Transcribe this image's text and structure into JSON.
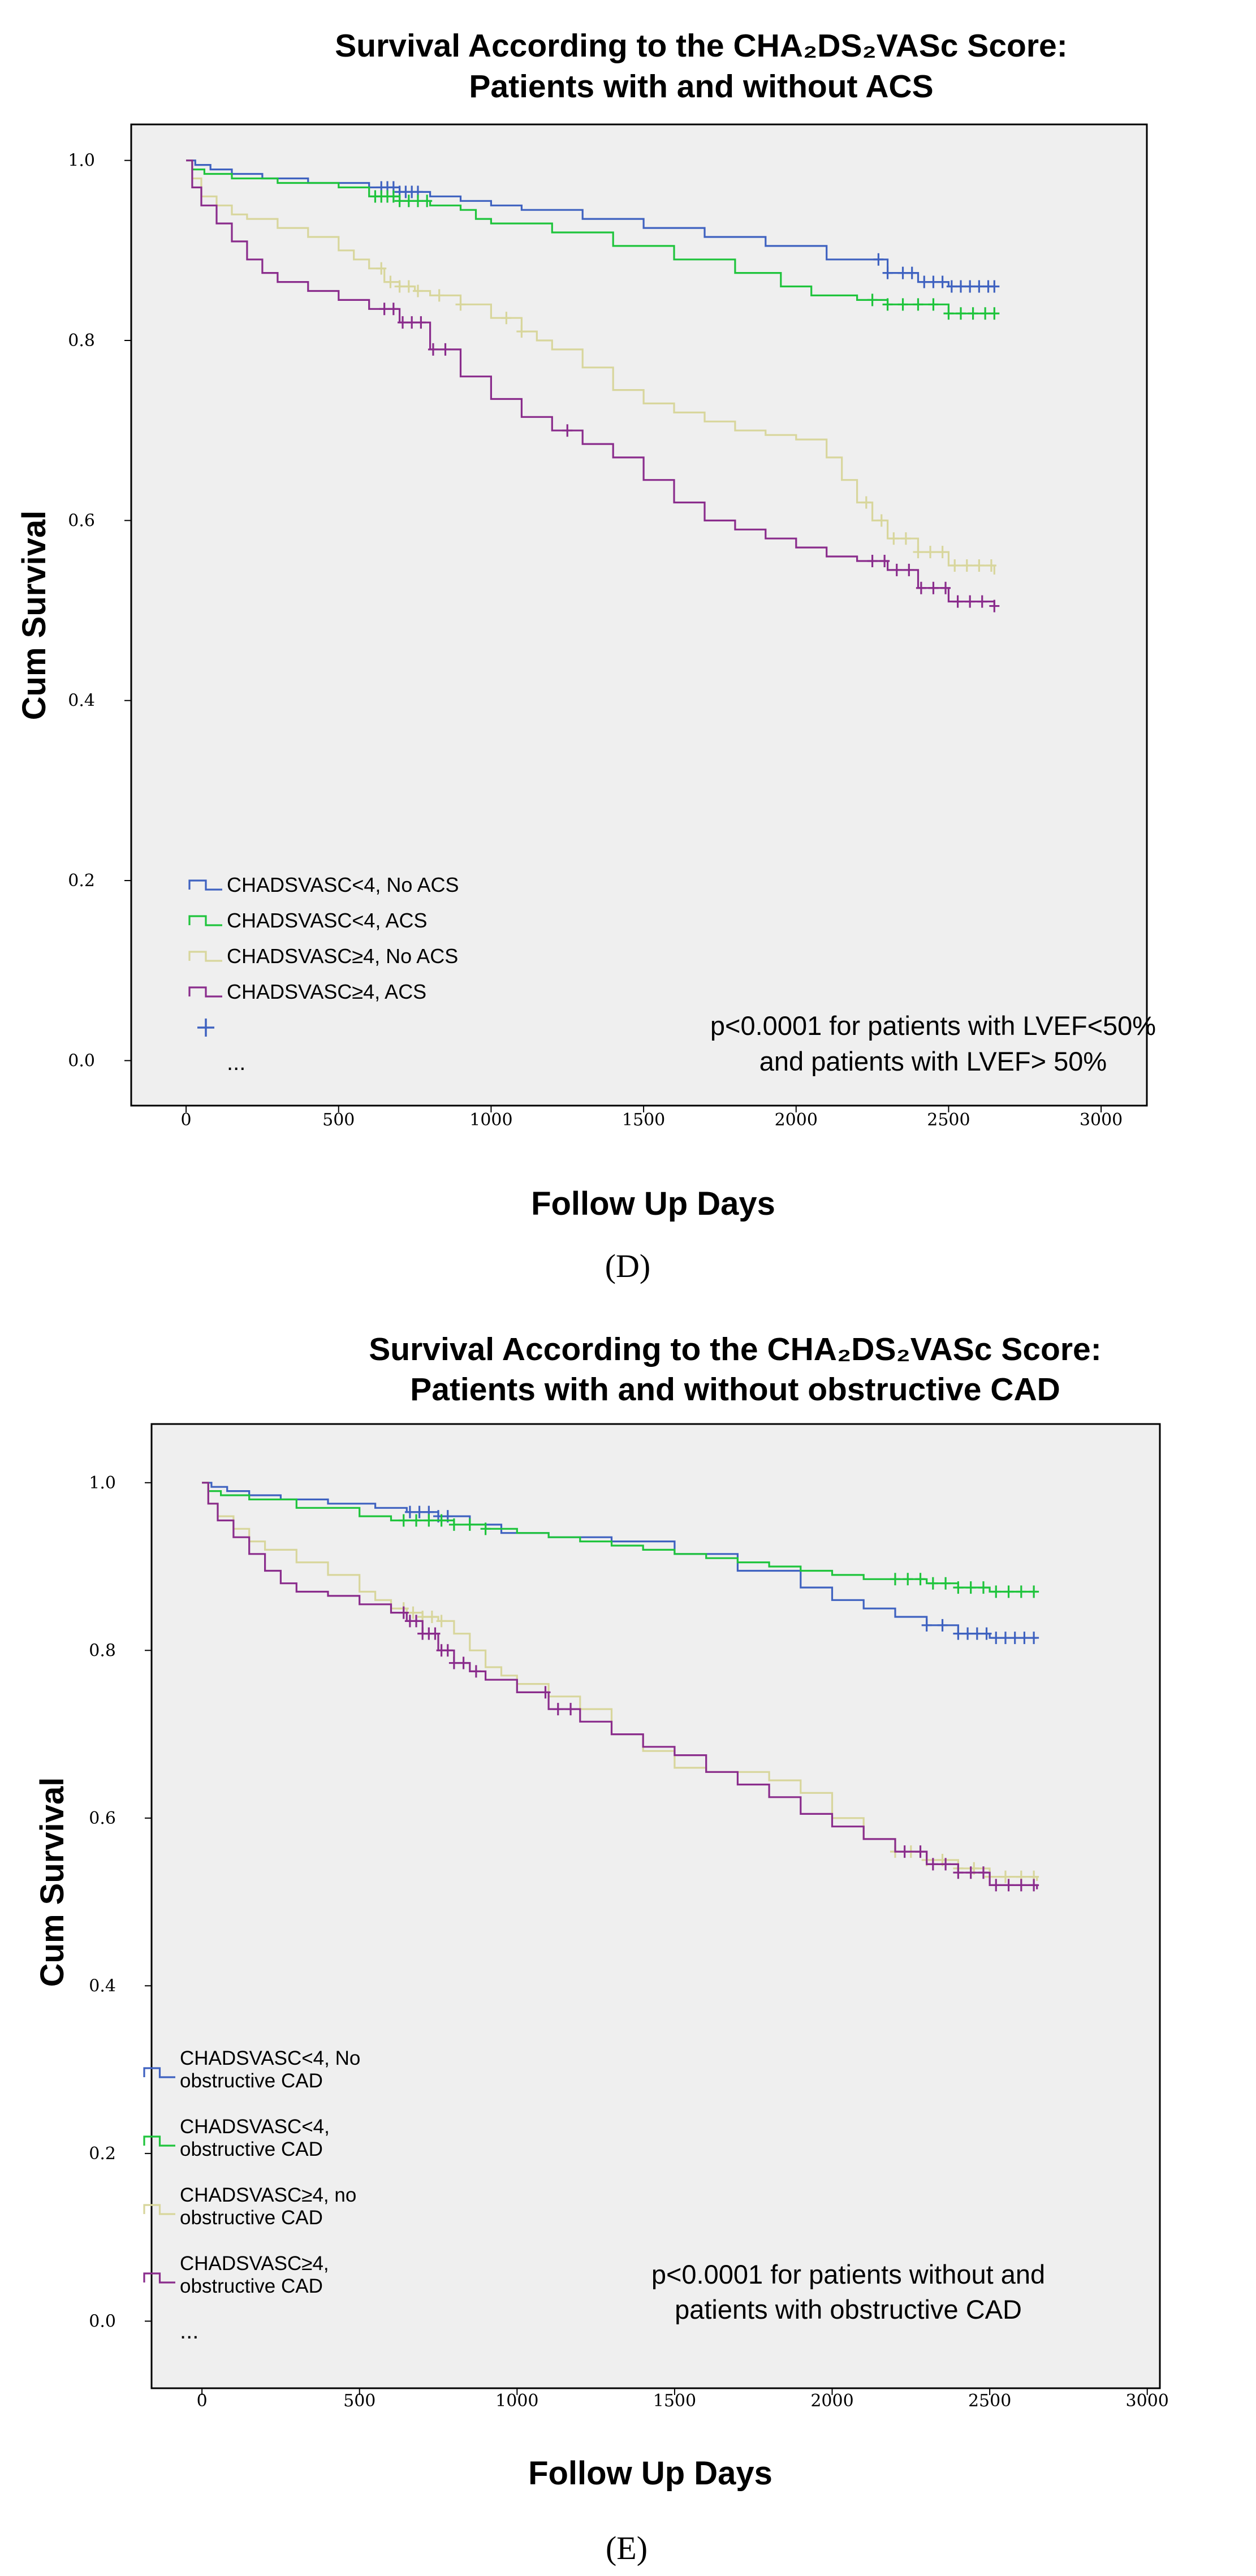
{
  "chart_data": [
    {
      "type": "line",
      "panel_label": "(D)",
      "title": [
        "Survival According to the CHA₂DS₂VASc Score:",
        "Patients with and without ACS"
      ],
      "xlabel": "Follow Up Days",
      "ylabel": "Cum Survival",
      "xlim": [
        -180,
        3150
      ],
      "ylim": [
        -0.05,
        1.04
      ],
      "x_ticks": [
        "0",
        "500",
        "1000",
        "1500",
        "2000",
        "2500",
        "3000"
      ],
      "y_ticks": [
        "0.0",
        "0.2",
        "0.4",
        "0.6",
        "0.8",
        "1.0"
      ],
      "legend_position": "bottom-left",
      "legend": [
        {
          "label": "CHADSVASC<4, No ACS",
          "color": "#3f62c0"
        },
        {
          "label": "CHADSVASC<4, ACS",
          "color": "#1fc43c"
        },
        {
          "label": "CHADSVASC≥4, No ACS",
          "color": "#d8d69c"
        },
        {
          "label": "CHADSVASC≥4, ACS",
          "color": "#8a2c8c"
        },
        {
          "label": "",
          "marker": "+",
          "color": "#3f62c0"
        },
        {
          "label": "...",
          "color": "#000000"
        }
      ],
      "annotation": [
        "p<0.0001 for patients with LVEF<50%",
        "and patients with LVEF> 50%"
      ],
      "series": [
        {
          "name": "CHADSVASC<4, No ACS",
          "color": "#3f62c0",
          "x": [
            0,
            30,
            80,
            150,
            250,
            400,
            600,
            700,
            800,
            900,
            1000,
            1100,
            1300,
            1500,
            1700,
            1900,
            2100,
            2300,
            2400,
            2500,
            2650
          ],
          "y": [
            1.0,
            0.995,
            0.99,
            0.985,
            0.98,
            0.975,
            0.97,
            0.965,
            0.96,
            0.955,
            0.95,
            0.945,
            0.935,
            0.925,
            0.915,
            0.905,
            0.89,
            0.875,
            0.865,
            0.86,
            0.86
          ],
          "censor_x": [
            640,
            660,
            680,
            700,
            720,
            740,
            760,
            2270,
            2300,
            2350,
            2380,
            2420,
            2450,
            2480,
            2510,
            2540,
            2570,
            2600,
            2630,
            2650
          ]
        },
        {
          "name": "CHADSVASC<4, ACS",
          "color": "#1fc43c",
          "x": [
            0,
            20,
            60,
            150,
            300,
            500,
            600,
            700,
            800,
            900,
            950,
            1000,
            1200,
            1400,
            1600,
            1800,
            1950,
            2050,
            2200,
            2300,
            2500,
            2650
          ],
          "y": [
            1.0,
            0.99,
            0.985,
            0.98,
            0.975,
            0.97,
            0.96,
            0.955,
            0.95,
            0.945,
            0.935,
            0.93,
            0.92,
            0.905,
            0.89,
            0.875,
            0.86,
            0.85,
            0.845,
            0.84,
            0.83,
            0.83
          ],
          "censor_x": [
            620,
            640,
            660,
            680,
            700,
            730,
            760,
            790,
            2250,
            2300,
            2350,
            2400,
            2450,
            2500,
            2540,
            2580,
            2620,
            2650
          ]
        },
        {
          "name": "CHADSVASC≥4, No ACS",
          "color": "#d8d69c",
          "x": [
            0,
            20,
            50,
            100,
            150,
            200,
            300,
            400,
            500,
            550,
            600,
            650,
            700,
            750,
            800,
            900,
            1000,
            1100,
            1150,
            1200,
            1300,
            1400,
            1500,
            1600,
            1700,
            1800,
            1900,
            2000,
            2100,
            2150,
            2200,
            2250,
            2300,
            2400,
            2500,
            2650
          ],
          "y": [
            1.0,
            0.98,
            0.96,
            0.95,
            0.94,
            0.935,
            0.925,
            0.915,
            0.9,
            0.89,
            0.88,
            0.865,
            0.86,
            0.855,
            0.85,
            0.84,
            0.825,
            0.81,
            0.8,
            0.79,
            0.77,
            0.745,
            0.73,
            0.72,
            0.71,
            0.7,
            0.695,
            0.69,
            0.67,
            0.645,
            0.62,
            0.6,
            0.58,
            0.565,
            0.55,
            0.54
          ],
          "censor_x": [
            640,
            670,
            700,
            730,
            760,
            830,
            900,
            1050,
            1100,
            2230,
            2280,
            2320,
            2360,
            2400,
            2440,
            2480,
            2520,
            2560,
            2600,
            2640
          ]
        },
        {
          "name": "CHADSVASC≥4, ACS",
          "color": "#8a2c8c",
          "x": [
            0,
            20,
            50,
            100,
            150,
            200,
            250,
            300,
            400,
            500,
            600,
            700,
            800,
            900,
            1000,
            1100,
            1200,
            1300,
            1400,
            1500,
            1600,
            1700,
            1800,
            1900,
            2000,
            2100,
            2200,
            2300,
            2400,
            2500,
            2650
          ],
          "y": [
            1.0,
            0.97,
            0.95,
            0.93,
            0.91,
            0.89,
            0.875,
            0.865,
            0.855,
            0.845,
            0.835,
            0.82,
            0.79,
            0.76,
            0.735,
            0.715,
            0.7,
            0.685,
            0.67,
            0.645,
            0.62,
            0.6,
            0.59,
            0.58,
            0.57,
            0.56,
            0.555,
            0.545,
            0.525,
            0.51,
            0.505
          ],
          "censor_x": [
            650,
            680,
            710,
            740,
            770,
            810,
            850,
            1250,
            2250,
            2290,
            2330,
            2370,
            2410,
            2450,
            2490,
            2530,
            2570,
            2610,
            2650
          ]
        }
      ]
    },
    {
      "type": "line",
      "panel_label": "(E)",
      "title": [
        "Survival According to the CHA₂DS₂VASc Score:",
        "Patients with and without obstructive CAD"
      ],
      "xlabel": "Follow Up Days",
      "ylabel": "Cum Survival",
      "xlim": [
        -160,
        3040
      ],
      "ylim": [
        -0.08,
        1.07
      ],
      "x_ticks": [
        "0",
        "500",
        "1000",
        "1500",
        "2000",
        "2500",
        "3000"
      ],
      "y_ticks": [
        "0.0",
        "0.2",
        "0.4",
        "0.6",
        "0.8",
        "1.0"
      ],
      "legend_position": "bottom-left",
      "legend": [
        {
          "label": [
            "CHADSVASC<4, No",
            "obstructive CAD"
          ],
          "color": "#3f62c0"
        },
        {
          "label": [
            "CHADSVASC<4,",
            "obstructive CAD"
          ],
          "color": "#1fc43c"
        },
        {
          "label": [
            "CHADSVASC≥4, no",
            "obstructive CAD"
          ],
          "color": "#d8d69c"
        },
        {
          "label": [
            "CHADSVASC≥4,",
            "obstructive CAD"
          ],
          "color": "#8a2c8c"
        },
        {
          "label": [
            "..."
          ],
          "color": "#000000"
        }
      ],
      "annotation": [
        "p<0.0001 for patients without and",
        "patients with obstructive CAD"
      ],
      "series": [
        {
          "name": "CHADSVASC<4, No obstructive CAD",
          "color": "#3f62c0",
          "x": [
            0,
            30,
            80,
            150,
            250,
            400,
            550,
            650,
            750,
            850,
            950,
            1100,
            1300,
            1500,
            1700,
            1900,
            2000,
            2100,
            2200,
            2300,
            2400,
            2500,
            2650
          ],
          "y": [
            1.0,
            0.995,
            0.99,
            0.985,
            0.98,
            0.975,
            0.97,
            0.965,
            0.96,
            0.95,
            0.94,
            0.935,
            0.93,
            0.915,
            0.895,
            0.875,
            0.86,
            0.85,
            0.84,
            0.83,
            0.82,
            0.815,
            0.815
          ],
          "censor_x": [
            660,
            690,
            720,
            750,
            780,
            2300,
            2350,
            2400,
            2430,
            2460,
            2490,
            2520,
            2550,
            2580,
            2610,
            2640
          ]
        },
        {
          "name": "CHADSVASC<4, obstructive CAD",
          "color": "#1fc43c",
          "x": [
            0,
            20,
            60,
            150,
            300,
            500,
            600,
            700,
            800,
            900,
            1000,
            1100,
            1200,
            1300,
            1400,
            1500,
            1600,
            1700,
            1800,
            1900,
            2000,
            2100,
            2200,
            2300,
            2400,
            2500,
            2650
          ],
          "y": [
            1.0,
            0.99,
            0.985,
            0.98,
            0.97,
            0.96,
            0.955,
            0.955,
            0.95,
            0.945,
            0.94,
            0.935,
            0.93,
            0.925,
            0.92,
            0.915,
            0.91,
            0.905,
            0.9,
            0.895,
            0.89,
            0.885,
            0.885,
            0.88,
            0.875,
            0.87,
            0.87
          ],
          "censor_x": [
            640,
            680,
            720,
            760,
            800,
            850,
            900,
            2200,
            2240,
            2280,
            2320,
            2360,
            2400,
            2440,
            2480,
            2520,
            2560,
            2600,
            2640
          ]
        },
        {
          "name": "CHADSVASC≥4, no obstructive CAD",
          "color": "#d8d69c",
          "x": [
            0,
            20,
            50,
            100,
            150,
            200,
            300,
            400,
            500,
            550,
            600,
            650,
            700,
            750,
            800,
            850,
            900,
            950,
            1000,
            1100,
            1200,
            1300,
            1400,
            1500,
            1600,
            1700,
            1800,
            1900,
            2000,
            2100,
            2200,
            2300,
            2400,
            2500,
            2650
          ],
          "y": [
            1.0,
            0.975,
            0.96,
            0.945,
            0.93,
            0.92,
            0.905,
            0.89,
            0.87,
            0.86,
            0.85,
            0.845,
            0.84,
            0.835,
            0.82,
            0.8,
            0.78,
            0.77,
            0.76,
            0.745,
            0.73,
            0.7,
            0.68,
            0.66,
            0.655,
            0.655,
            0.645,
            0.63,
            0.6,
            0.575,
            0.56,
            0.55,
            0.54,
            0.53,
            0.525
          ],
          "censor_x": [
            640,
            670,
            700,
            730,
            760,
            2200,
            2250,
            2300,
            2350,
            2400,
            2450,
            2500,
            2550,
            2600,
            2640
          ]
        },
        {
          "name": "CHADSVASC≥4, obstructive CAD",
          "color": "#8a2c8c",
          "x": [
            0,
            20,
            50,
            100,
            150,
            200,
            250,
            300,
            400,
            500,
            600,
            650,
            700,
            750,
            800,
            850,
            900,
            1000,
            1100,
            1200,
            1300,
            1400,
            1500,
            1600,
            1700,
            1800,
            1900,
            2000,
            2100,
            2200,
            2300,
            2400,
            2500,
            2650
          ],
          "y": [
            1.0,
            0.975,
            0.955,
            0.935,
            0.915,
            0.895,
            0.88,
            0.87,
            0.865,
            0.855,
            0.845,
            0.835,
            0.82,
            0.8,
            0.785,
            0.775,
            0.765,
            0.75,
            0.73,
            0.715,
            0.7,
            0.685,
            0.675,
            0.655,
            0.64,
            0.625,
            0.605,
            0.59,
            0.575,
            0.56,
            0.545,
            0.535,
            0.52,
            0.515
          ],
          "censor_x": [
            640,
            660,
            680,
            700,
            720,
            740,
            760,
            780,
            800,
            830,
            870,
            1090,
            1130,
            1170,
            2230,
            2280,
            2320,
            2360,
            2400,
            2440,
            2480,
            2520,
            2560,
            2600,
            2640
          ]
        }
      ]
    }
  ]
}
